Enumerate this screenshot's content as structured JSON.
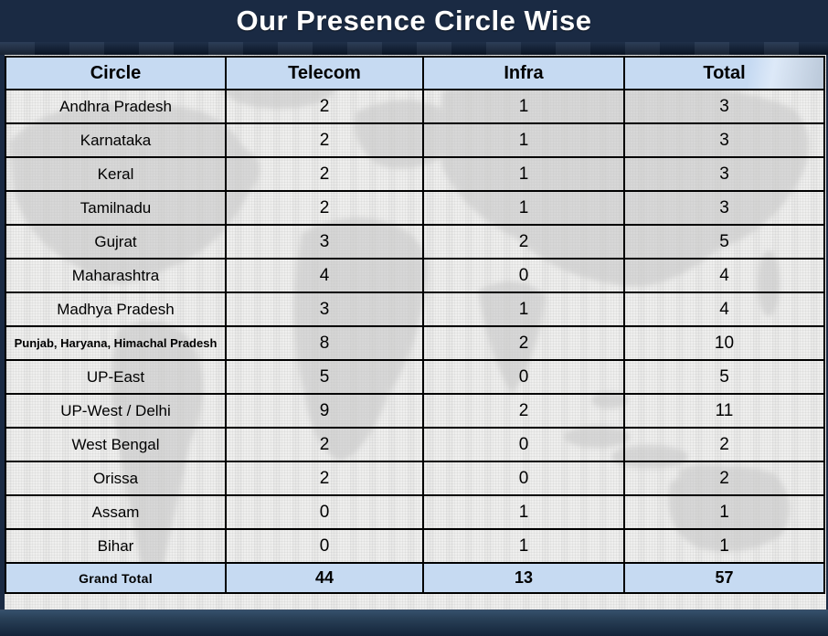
{
  "title": "Our Presence Circle Wise",
  "table": {
    "columns": [
      "Circle",
      "Telecom",
      "Infra",
      "Total"
    ],
    "rows": [
      {
        "circle": "Andhra Pradesh",
        "telecom": 2,
        "infra": 1,
        "total": 3
      },
      {
        "circle": "Karnataka",
        "telecom": 2,
        "infra": 1,
        "total": 3
      },
      {
        "circle": "Keral",
        "telecom": 2,
        "infra": 1,
        "total": 3
      },
      {
        "circle": "Tamilnadu",
        "telecom": 2,
        "infra": 1,
        "total": 3
      },
      {
        "circle": "Gujrat",
        "telecom": 3,
        "infra": 2,
        "total": 5
      },
      {
        "circle": "Maharashtra",
        "telecom": 4,
        "infra": 0,
        "total": 4
      },
      {
        "circle": "Madhya Pradesh",
        "telecom": 3,
        "infra": 1,
        "total": 4
      },
      {
        "circle": "Punjab, Haryana, Himachal Pradesh",
        "telecom": 8,
        "infra": 2,
        "total": 10
      },
      {
        "circle": "UP-East",
        "telecom": 5,
        "infra": 0,
        "total": 5
      },
      {
        "circle": "UP-West / Delhi",
        "telecom": 9,
        "infra": 2,
        "total": 11
      },
      {
        "circle": "West Bengal",
        "telecom": 2,
        "infra": 0,
        "total": 2
      },
      {
        "circle": "Orissa",
        "telecom": 2,
        "infra": 0,
        "total": 2
      },
      {
        "circle": "Assam",
        "telecom": 0,
        "infra": 1,
        "total": 1
      },
      {
        "circle": "Bihar",
        "telecom": 0,
        "infra": 1,
        "total": 1
      }
    ],
    "grand_total": {
      "label": "Grand Total",
      "telecom": 44,
      "infra": 13,
      "total": 57
    }
  },
  "chart_data": {
    "type": "table",
    "title": "Our Presence Circle Wise",
    "columns": [
      "Circle",
      "Telecom",
      "Infra",
      "Total"
    ],
    "rows": [
      [
        "Andhra Pradesh",
        2,
        1,
        3
      ],
      [
        "Karnataka",
        2,
        1,
        3
      ],
      [
        "Keral",
        2,
        1,
        3
      ],
      [
        "Tamilnadu",
        2,
        1,
        3
      ],
      [
        "Gujrat",
        3,
        2,
        5
      ],
      [
        "Maharashtra",
        4,
        0,
        4
      ],
      [
        "Madhya Pradesh",
        3,
        1,
        4
      ],
      [
        "Punjab, Haryana, Himachal Pradesh",
        8,
        2,
        10
      ],
      [
        "UP-East",
        5,
        0,
        5
      ],
      [
        "UP-West / Delhi",
        9,
        2,
        11
      ],
      [
        "West Bengal",
        2,
        0,
        2
      ],
      [
        "Orissa",
        2,
        0,
        2
      ],
      [
        "Assam",
        0,
        1,
        1
      ],
      [
        "Bihar",
        0,
        1,
        1
      ],
      [
        "Grand Total",
        44,
        13,
        57
      ]
    ]
  },
  "colors": {
    "slide_navy": "#1a2a43",
    "header_blue": "#c6daf2",
    "table_border": "#000000",
    "title_text": "#ffffff",
    "map_gray": "#cccccc"
  }
}
